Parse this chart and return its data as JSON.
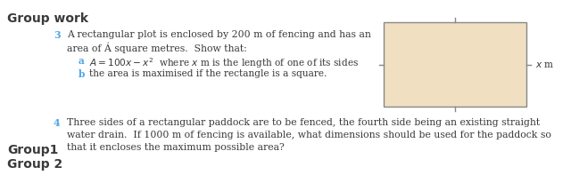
{
  "title": "Group work",
  "q3_number": "3",
  "q3_text1": "A rectangular plot is enclosed by 200 m of fencing and has an",
  "q3_text2": "area of Á square metres.  Show that:",
  "q3a_label": "a",
  "q3a_math": "$A = 100x - x^2$  where $x$ m is the length of one of its sides",
  "q3b_label": "b",
  "q3b_text": "the area is maximised if the rectangle is a square.",
  "q4_number": "4",
  "q4_line1": "Three sides of a rectangular paddock are to be fenced, the fourth side being an existing straight",
  "q4_line2": "water drain.  If 1000 m of fencing is available, what dimensions should be used for the paddock so",
  "q4_line3": "that it encloses the maximum possible area?",
  "group1_label": "Group1",
  "group2_label": "Group 2",
  "rect_facecolor": "#f0dfc0",
  "rect_edgecolor": "#888888",
  "bg_color": "#ffffff",
  "text_color": "#3a3a3a",
  "blue_color": "#4da6e8",
  "title_fontsize": 10,
  "body_fontsize": 7.8,
  "sub_fontsize": 7.6,
  "group_fontsize": 10
}
